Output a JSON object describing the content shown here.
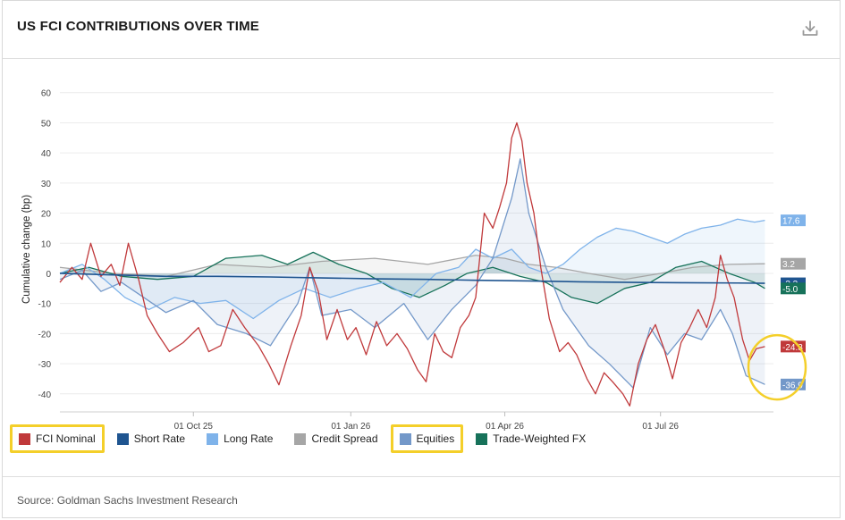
{
  "header": {
    "title": "US FCI CONTRIBUTIONS OVER TIME",
    "download_icon": "download-icon"
  },
  "footer": {
    "source": "Source: Goldman Sachs Investment Research"
  },
  "colors": {
    "fci_nominal": "#c0393b",
    "short_rate": "#1f5590",
    "long_rate": "#7fb3ea",
    "credit_spread": "#a6a6a6",
    "equities": "#7398c9",
    "trade_weighted_fx": "#17725a",
    "highlight": "#f4cf2a"
  },
  "legend": [
    {
      "label": "FCI Nominal",
      "key": "fci_nominal",
      "highlighted": true
    },
    {
      "label": "Short Rate",
      "key": "short_rate",
      "highlighted": false
    },
    {
      "label": "Long Rate",
      "key": "long_rate",
      "highlighted": false
    },
    {
      "label": "Credit Spread",
      "key": "credit_spread",
      "highlighted": false
    },
    {
      "label": "Equities",
      "key": "equities",
      "highlighted": true
    },
    {
      "label": "Trade-Weighted FX",
      "key": "trade_weighted_fx",
      "highlighted": false
    }
  ],
  "chart_data": {
    "type": "line",
    "ylabel": "Cumulative change (bp)",
    "ylim": [
      -46,
      62
    ],
    "yticks": [
      -40,
      -30,
      -20,
      -10,
      0,
      10,
      20,
      30,
      40,
      50,
      60
    ],
    "x_tick_labels": [
      "01 Oct 25",
      "01 Jan 26",
      "01 Apr 26",
      "01 Jul 26"
    ],
    "x_tick_dates": [
      "2025-10-01",
      "2026-01-01",
      "2026-04-01",
      "2026-07-01"
    ],
    "x_range": [
      "2025-07-15",
      "2026-09-05"
    ],
    "grid": "horizontal",
    "series": [
      {
        "name": "FCI Nominal",
        "key": "fci_nominal",
        "end_label": "-24.3",
        "points": [
          [
            "2025-07-15",
            -3
          ],
          [
            "2025-07-22",
            2
          ],
          [
            "2025-07-28",
            -2
          ],
          [
            "2025-08-02",
            10
          ],
          [
            "2025-08-08",
            -1
          ],
          [
            "2025-08-14",
            3
          ],
          [
            "2025-08-19",
            -4
          ],
          [
            "2025-08-24",
            10
          ],
          [
            "2025-08-30",
            -2
          ],
          [
            "2025-09-04",
            -14
          ],
          [
            "2025-09-10",
            -20
          ],
          [
            "2025-09-17",
            -26
          ],
          [
            "2025-09-25",
            -23
          ],
          [
            "2025-10-04",
            -18
          ],
          [
            "2025-10-10",
            -26
          ],
          [
            "2025-10-17",
            -24
          ],
          [
            "2025-10-24",
            -12
          ],
          [
            "2025-10-31",
            -18
          ],
          [
            "2025-11-08",
            -24
          ],
          [
            "2025-11-14",
            -30
          ],
          [
            "2025-11-20",
            -37
          ],
          [
            "2025-11-27",
            -24
          ],
          [
            "2025-12-03",
            -14
          ],
          [
            "2025-12-08",
            2
          ],
          [
            "2025-12-13",
            -6
          ],
          [
            "2025-12-18",
            -22
          ],
          [
            "2025-12-24",
            -12
          ],
          [
            "2025-12-30",
            -22
          ],
          [
            "2026-01-04",
            -18
          ],
          [
            "2026-01-10",
            -27
          ],
          [
            "2026-01-16",
            -16
          ],
          [
            "2026-01-22",
            -24
          ],
          [
            "2026-01-28",
            -20
          ],
          [
            "2026-02-03",
            -25
          ],
          [
            "2026-02-09",
            -32
          ],
          [
            "2026-02-14",
            -36
          ],
          [
            "2026-02-19",
            -20
          ],
          [
            "2026-02-24",
            -26
          ],
          [
            "2026-03-01",
            -28
          ],
          [
            "2026-03-06",
            -18
          ],
          [
            "2026-03-11",
            -14
          ],
          [
            "2026-03-15",
            -8
          ],
          [
            "2026-03-20",
            20
          ],
          [
            "2026-03-25",
            15
          ],
          [
            "2026-03-29",
            22
          ],
          [
            "2026-04-02",
            30
          ],
          [
            "2026-04-05",
            45
          ],
          [
            "2026-04-08",
            50
          ],
          [
            "2026-04-11",
            44
          ],
          [
            "2026-04-14",
            30
          ],
          [
            "2026-04-18",
            20
          ],
          [
            "2026-04-22",
            2
          ],
          [
            "2026-04-27",
            -15
          ],
          [
            "2026-05-03",
            -26
          ],
          [
            "2026-05-08",
            -23
          ],
          [
            "2026-05-13",
            -27
          ],
          [
            "2026-05-19",
            -35
          ],
          [
            "2026-05-24",
            -40
          ],
          [
            "2026-05-29",
            -33
          ],
          [
            "2026-06-03",
            -36
          ],
          [
            "2026-06-09",
            -40
          ],
          [
            "2026-06-13",
            -44
          ],
          [
            "2026-06-18",
            -30
          ],
          [
            "2026-06-23",
            -22
          ],
          [
            "2026-06-28",
            -17
          ],
          [
            "2026-07-03",
            -25
          ],
          [
            "2026-07-08",
            -35
          ],
          [
            "2026-07-13",
            -23
          ],
          [
            "2026-07-18",
            -18
          ],
          [
            "2026-07-23",
            -12
          ],
          [
            "2026-07-28",
            -18
          ],
          [
            "2026-08-02",
            -8
          ],
          [
            "2026-08-05",
            6
          ],
          [
            "2026-08-09",
            -2
          ],
          [
            "2026-08-13",
            -8
          ],
          [
            "2026-08-18",
            -22
          ],
          [
            "2026-08-22",
            -29
          ],
          [
            "2026-08-26",
            -25
          ],
          [
            "2026-08-31",
            -24.3
          ]
        ]
      },
      {
        "name": "Short Rate",
        "key": "short_rate",
        "end_label": "-3.3",
        "points": [
          [
            "2025-07-15",
            0
          ],
          [
            "2025-08-15",
            -0.5
          ],
          [
            "2025-09-15",
            -1
          ],
          [
            "2025-10-15",
            -1
          ],
          [
            "2025-11-15",
            -1.2
          ],
          [
            "2025-12-15",
            -1.5
          ],
          [
            "2026-01-15",
            -1.8
          ],
          [
            "2026-02-15",
            -2
          ],
          [
            "2026-03-15",
            -2.3
          ],
          [
            "2026-04-15",
            -2.5
          ],
          [
            "2026-05-15",
            -2.8
          ],
          [
            "2026-06-15",
            -3
          ],
          [
            "2026-07-15",
            -3.1
          ],
          [
            "2026-08-15",
            -3.2
          ],
          [
            "2026-08-31",
            -3.3
          ]
        ]
      },
      {
        "name": "Long Rate",
        "key": "long_rate",
        "end_label": "17.6",
        "points": [
          [
            "2025-07-15",
            0
          ],
          [
            "2025-07-28",
            3
          ],
          [
            "2025-08-10",
            -2
          ],
          [
            "2025-08-22",
            -8
          ],
          [
            "2025-09-05",
            -12
          ],
          [
            "2025-09-20",
            -8
          ],
          [
            "2025-10-05",
            -10
          ],
          [
            "2025-10-20",
            -9
          ],
          [
            "2025-11-05",
            -15
          ],
          [
            "2025-11-20",
            -9
          ],
          [
            "2025-12-05",
            -5
          ],
          [
            "2025-12-20",
            -8
          ],
          [
            "2026-01-05",
            -5
          ],
          [
            "2026-01-20",
            -3
          ],
          [
            "2026-02-05",
            -8
          ],
          [
            "2026-02-20",
            0
          ],
          [
            "2026-03-05",
            2
          ],
          [
            "2026-03-15",
            8
          ],
          [
            "2026-03-25",
            5
          ],
          [
            "2026-04-05",
            8
          ],
          [
            "2026-04-15",
            2
          ],
          [
            "2026-04-25",
            0
          ],
          [
            "2026-05-05",
            3
          ],
          [
            "2026-05-15",
            8
          ],
          [
            "2026-05-25",
            12
          ],
          [
            "2026-06-05",
            15
          ],
          [
            "2026-06-15",
            14
          ],
          [
            "2026-06-25",
            12
          ],
          [
            "2026-07-05",
            10
          ],
          [
            "2026-07-15",
            13
          ],
          [
            "2026-07-25",
            15
          ],
          [
            "2026-08-05",
            16
          ],
          [
            "2026-08-15",
            18
          ],
          [
            "2026-08-25",
            17
          ],
          [
            "2026-08-31",
            17.6
          ]
        ]
      },
      {
        "name": "Credit Spread",
        "key": "credit_spread",
        "end_label": "3.2",
        "points": [
          [
            "2025-07-15",
            2
          ],
          [
            "2025-08-15",
            0
          ],
          [
            "2025-09-15",
            -1
          ],
          [
            "2025-10-15",
            3
          ],
          [
            "2025-11-15",
            2
          ],
          [
            "2025-12-15",
            4
          ],
          [
            "2026-01-15",
            5
          ],
          [
            "2026-02-15",
            3
          ],
          [
            "2026-03-15",
            6
          ],
          [
            "2026-04-01",
            5
          ],
          [
            "2026-04-15",
            3
          ],
          [
            "2026-05-01",
            2
          ],
          [
            "2026-05-20",
            0
          ],
          [
            "2026-06-10",
            -2
          ],
          [
            "2026-07-01",
            0
          ],
          [
            "2026-07-20",
            2
          ],
          [
            "2026-08-10",
            3
          ],
          [
            "2026-08-31",
            3.2
          ]
        ]
      },
      {
        "name": "Equities",
        "key": "equities",
        "end_label": "-36.9",
        "points": [
          [
            "2025-07-15",
            -2
          ],
          [
            "2025-07-28",
            1
          ],
          [
            "2025-08-08",
            -6
          ],
          [
            "2025-08-20",
            -3
          ],
          [
            "2025-09-02",
            -8
          ],
          [
            "2025-09-15",
            -13
          ],
          [
            "2025-10-01",
            -9
          ],
          [
            "2025-10-15",
            -17
          ],
          [
            "2025-11-01",
            -20
          ],
          [
            "2025-11-15",
            -24
          ],
          [
            "2025-12-01",
            -10
          ],
          [
            "2025-12-08",
            2
          ],
          [
            "2025-12-15",
            -14
          ],
          [
            "2026-01-01",
            -12
          ],
          [
            "2026-01-15",
            -18
          ],
          [
            "2026-02-01",
            -10
          ],
          [
            "2026-02-15",
            -22
          ],
          [
            "2026-03-01",
            -12
          ],
          [
            "2026-03-15",
            -4
          ],
          [
            "2026-03-25",
            5
          ],
          [
            "2026-04-05",
            25
          ],
          [
            "2026-04-10",
            38
          ],
          [
            "2026-04-15",
            20
          ],
          [
            "2026-04-25",
            2
          ],
          [
            "2026-05-05",
            -12
          ],
          [
            "2026-05-20",
            -24
          ],
          [
            "2026-06-01",
            -30
          ],
          [
            "2026-06-15",
            -38
          ],
          [
            "2026-06-25",
            -18
          ],
          [
            "2026-07-05",
            -27
          ],
          [
            "2026-07-15",
            -20
          ],
          [
            "2026-07-25",
            -22
          ],
          [
            "2026-08-05",
            -12
          ],
          [
            "2026-08-12",
            -20
          ],
          [
            "2026-08-20",
            -34
          ],
          [
            "2026-08-31",
            -36.9
          ]
        ]
      },
      {
        "name": "Trade-Weighted FX",
        "key": "trade_weighted_fx",
        "end_label": "-5.0",
        "points": [
          [
            "2025-07-15",
            0
          ],
          [
            "2025-08-01",
            2
          ],
          [
            "2025-08-20",
            -1
          ],
          [
            "2025-09-10",
            -2
          ],
          [
            "2025-10-01",
            -1
          ],
          [
            "2025-10-20",
            5
          ],
          [
            "2025-11-10",
            6
          ],
          [
            "2025-11-25",
            3
          ],
          [
            "2025-12-10",
            7
          ],
          [
            "2025-12-25",
            3
          ],
          [
            "2026-01-10",
            0
          ],
          [
            "2026-01-25",
            -5
          ],
          [
            "2026-02-10",
            -8
          ],
          [
            "2026-02-25",
            -4
          ],
          [
            "2026-03-10",
            0
          ],
          [
            "2026-03-25",
            2
          ],
          [
            "2026-04-10",
            -1
          ],
          [
            "2026-04-25",
            -3
          ],
          [
            "2026-05-10",
            -8
          ],
          [
            "2026-05-25",
            -10
          ],
          [
            "2026-06-10",
            -5
          ],
          [
            "2026-06-25",
            -3
          ],
          [
            "2026-07-10",
            2
          ],
          [
            "2026-07-25",
            4
          ],
          [
            "2026-08-10",
            0
          ],
          [
            "2026-08-25",
            -3
          ],
          [
            "2026-08-31",
            -5.0
          ]
        ]
      }
    ]
  }
}
